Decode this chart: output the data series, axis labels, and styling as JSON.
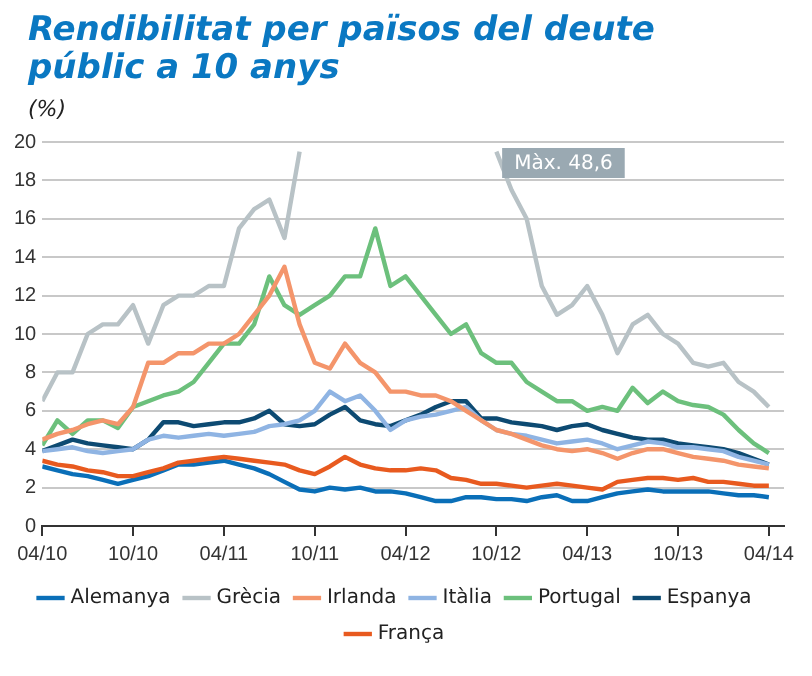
{
  "chart_data": {
    "type": "line",
    "title": "Rendibilitat per països del deute públic a 10 anys",
    "ylabel": "(%)",
    "x": [
      "2010-04",
      "2010-05",
      "2010-06",
      "2010-07",
      "2010-08",
      "2010-09",
      "2010-10",
      "2010-11",
      "2010-12",
      "2011-01",
      "2011-02",
      "2011-03",
      "2011-04",
      "2011-05",
      "2011-06",
      "2011-07",
      "2011-08",
      "2011-09",
      "2011-10",
      "2011-11",
      "2011-12",
      "2012-01",
      "2012-02",
      "2012-03",
      "2012-04",
      "2012-05",
      "2012-06",
      "2012-07",
      "2012-08",
      "2012-09",
      "2012-10",
      "2012-11",
      "2012-12",
      "2013-01",
      "2013-02",
      "2013-03",
      "2013-04",
      "2013-05",
      "2013-06",
      "2013-07",
      "2013-08",
      "2013-09",
      "2013-10",
      "2013-11",
      "2013-12",
      "2014-01",
      "2014-02",
      "2014-03",
      "2014-04"
    ],
    "series": [
      {
        "name": "Alemanya",
        "color": "#0a6fb8",
        "values": [
          3.1,
          2.9,
          2.7,
          2.6,
          2.4,
          2.2,
          2.4,
          2.6,
          2.9,
          3.2,
          3.2,
          3.3,
          3.4,
          3.2,
          3,
          2.7,
          2.3,
          1.9,
          1.8,
          2,
          1.9,
          2,
          1.8,
          1.8,
          1.7,
          1.5,
          1.3,
          1.3,
          1.5,
          1.5,
          1.4,
          1.4,
          1.3,
          1.5,
          1.6,
          1.3,
          1.3,
          1.5,
          1.7,
          1.8,
          1.9,
          1.8,
          1.8,
          1.8,
          1.8,
          1.7,
          1.6,
          1.6,
          1.5
        ]
      },
      {
        "name": "Grècia",
        "color": "#b8c2c6",
        "values": [
          6.5,
          8,
          8,
          10,
          10.5,
          10.5,
          11.5,
          9.5,
          11.5,
          12,
          12,
          12.5,
          12.5,
          15.5,
          16.5,
          17,
          15,
          19.5,
          null,
          null,
          null,
          null,
          null,
          null,
          null,
          null,
          null,
          null,
          null,
          null,
          19.5,
          17.5,
          16,
          12.5,
          11,
          11.5,
          12.5,
          11,
          9,
          10.5,
          11,
          10,
          9.5,
          8.5,
          8.3,
          8.5,
          7.5,
          7,
          6.2
        ]
      },
      {
        "name": "Irlanda",
        "color": "#f4956b",
        "values": [
          4.5,
          4.8,
          5,
          5.3,
          5.5,
          5.3,
          6.2,
          8.5,
          8.5,
          9,
          9,
          9.5,
          9.5,
          10,
          11,
          12,
          13.5,
          10.5,
          8.5,
          8.2,
          9.5,
          8.5,
          8,
          7,
          7,
          6.8,
          6.8,
          6.5,
          6,
          5.5,
          5,
          4.8,
          4.5,
          4.2,
          4,
          3.9,
          4,
          3.8,
          3.5,
          3.8,
          4,
          4,
          3.8,
          3.6,
          3.5,
          3.4,
          3.2,
          3.1,
          3
        ]
      },
      {
        "name": "Itàlia",
        "color": "#8fb4e3",
        "values": [
          3.9,
          4,
          4.1,
          3.9,
          3.8,
          3.9,
          4,
          4.5,
          4.7,
          4.6,
          4.7,
          4.8,
          4.7,
          4.8,
          4.9,
          5.2,
          5.3,
          5.5,
          6,
          7,
          6.5,
          6.8,
          6,
          5,
          5.5,
          5.7,
          5.8,
          6,
          6.2,
          5.5,
          5,
          4.8,
          4.7,
          4.5,
          4.3,
          4.4,
          4.5,
          4.3,
          4,
          4.2,
          4.4,
          4.3,
          4.1,
          4.1,
          4,
          3.9,
          3.6,
          3.4,
          3.2
        ]
      },
      {
        "name": "Portugal",
        "color": "#6cc07c",
        "values": [
          4.2,
          5.5,
          4.8,
          5.5,
          5.5,
          5.1,
          6.2,
          6.5,
          6.8,
          7,
          7.5,
          8.5,
          9.5,
          9.5,
          10.5,
          13,
          11.5,
          11,
          11.5,
          12,
          13,
          13,
          15.5,
          12.5,
          13,
          12,
          11,
          10,
          10.5,
          9,
          8.5,
          8.5,
          7.5,
          7,
          6.5,
          6.5,
          6,
          6.2,
          6,
          7.2,
          6.4,
          7,
          6.5,
          6.3,
          6.2,
          5.8,
          5,
          4.3,
          3.8
        ]
      },
      {
        "name": "Espanya",
        "color": "#0d4a72",
        "values": [
          3.9,
          4.2,
          4.5,
          4.3,
          4.2,
          4.1,
          4,
          4.5,
          5.4,
          5.4,
          5.2,
          5.3,
          5.4,
          5.4,
          5.6,
          6,
          5.3,
          5.2,
          5.3,
          5.8,
          6.2,
          5.5,
          5.3,
          5.2,
          5.5,
          5.8,
          6.2,
          6.5,
          6.5,
          5.6,
          5.6,
          5.4,
          5.3,
          5.2,
          5,
          5.2,
          5.3,
          5,
          4.8,
          4.6,
          4.5,
          4.5,
          4.3,
          4.2,
          4.1,
          4,
          3.8,
          3.5,
          3.2
        ]
      },
      {
        "name": "França",
        "color": "#e85a1f",
        "values": [
          3.4,
          3.2,
          3.1,
          2.9,
          2.8,
          2.6,
          2.6,
          2.8,
          3,
          3.3,
          3.4,
          3.5,
          3.6,
          3.5,
          3.4,
          3.3,
          3.2,
          2.9,
          2.7,
          3.1,
          3.6,
          3.2,
          3,
          2.9,
          2.9,
          3,
          2.9,
          2.5,
          2.4,
          2.2,
          2.2,
          2.1,
          2,
          2.1,
          2.2,
          2.1,
          2,
          1.9,
          2.3,
          2.4,
          2.5,
          2.5,
          2.4,
          2.5,
          2.3,
          2.3,
          2.2,
          2.1,
          2.1
        ]
      }
    ],
    "xlim": [
      "2010-04",
      "2014-05"
    ],
    "xticks": [
      {
        "value": "2010-04",
        "label": "04/10"
      },
      {
        "value": "2010-10",
        "label": "10/10"
      },
      {
        "value": "2011-04",
        "label": "04/11"
      },
      {
        "value": "2011-10",
        "label": "10/11"
      },
      {
        "value": "2012-04",
        "label": "04/12"
      },
      {
        "value": "2012-10",
        "label": "10/12"
      },
      {
        "value": "2013-04",
        "label": "04/13"
      },
      {
        "value": "2013-10",
        "label": "10/13"
      },
      {
        "value": "2014-04",
        "label": "04/14"
      }
    ],
    "ylim": [
      0,
      20
    ],
    "yticks": [
      0,
      2,
      4,
      6,
      8,
      10,
      12,
      14,
      16,
      18,
      20
    ],
    "annotations": [
      "Màx. 48,6"
    ],
    "grid": "y",
    "legend": "bottom",
    "marker": "none",
    "line_style": "solid"
  }
}
